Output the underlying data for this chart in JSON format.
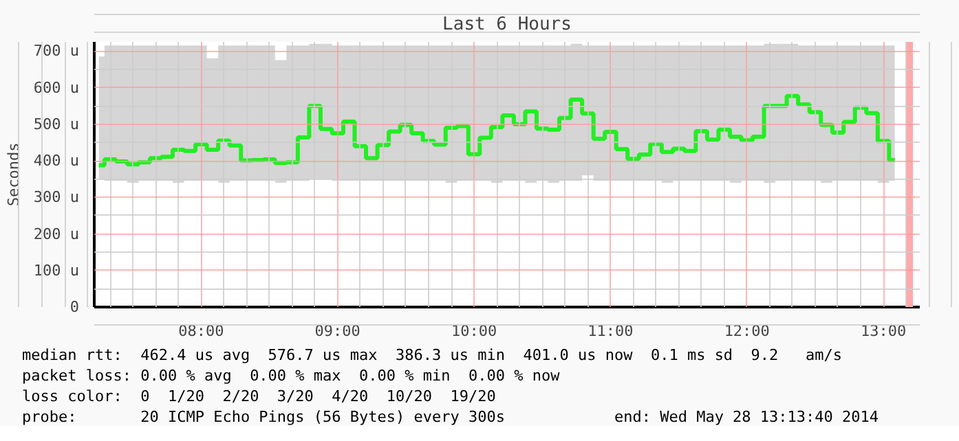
{
  "chart_data": {
    "type": "step",
    "title": "Last 6 Hours",
    "ylabel": "Seconds",
    "x": [
      "2014-05-28T07:15",
      "2014-05-28T07:20",
      "2014-05-28T07:25",
      "2014-05-28T07:30",
      "2014-05-28T07:35",
      "2014-05-28T07:40",
      "2014-05-28T07:45",
      "2014-05-28T07:50",
      "2014-05-28T07:55",
      "2014-05-28T08:00",
      "2014-05-28T08:05",
      "2014-05-28T08:10",
      "2014-05-28T08:15",
      "2014-05-28T08:20",
      "2014-05-28T08:25",
      "2014-05-28T08:30",
      "2014-05-28T08:35",
      "2014-05-28T08:40",
      "2014-05-28T08:45",
      "2014-05-28T08:50",
      "2014-05-28T08:55",
      "2014-05-28T09:00",
      "2014-05-28T09:05",
      "2014-05-28T09:10",
      "2014-05-28T09:15",
      "2014-05-28T09:20",
      "2014-05-28T09:25",
      "2014-05-28T09:30",
      "2014-05-28T09:35",
      "2014-05-28T09:40",
      "2014-05-28T09:45",
      "2014-05-28T09:50",
      "2014-05-28T09:55",
      "2014-05-28T10:00",
      "2014-05-28T10:05",
      "2014-05-28T10:10",
      "2014-05-28T10:15",
      "2014-05-28T10:20",
      "2014-05-28T10:25",
      "2014-05-28T10:30",
      "2014-05-28T10:35",
      "2014-05-28T10:40",
      "2014-05-28T10:45",
      "2014-05-28T10:50",
      "2014-05-28T10:55",
      "2014-05-28T11:00",
      "2014-05-28T11:05",
      "2014-05-28T11:10",
      "2014-05-28T11:15",
      "2014-05-28T11:20",
      "2014-05-28T11:25",
      "2014-05-28T11:30",
      "2014-05-28T11:35",
      "2014-05-28T11:40",
      "2014-05-28T11:45",
      "2014-05-28T11:50",
      "2014-05-28T11:55",
      "2014-05-28T12:00",
      "2014-05-28T12:05",
      "2014-05-28T12:10",
      "2014-05-28T12:15",
      "2014-05-28T12:20",
      "2014-05-28T12:25",
      "2014-05-28T12:30",
      "2014-05-28T12:35",
      "2014-05-28T12:40",
      "2014-05-28T12:45",
      "2014-05-28T12:50",
      "2014-05-28T12:55",
      "2014-05-28T13:00",
      "2014-05-28T13:05"
    ],
    "series": [
      {
        "color": "#22ee22",
        "values": [
          388,
          404,
          398,
          390,
          396,
          407,
          411,
          430,
          427,
          445,
          430,
          455,
          442,
          401,
          402,
          404,
          394,
          396,
          464,
          550,
          487,
          475,
          507,
          440,
          407,
          443,
          480,
          498,
          475,
          454,
          444,
          490,
          495,
          418,
          463,
          492,
          524,
          500,
          535,
          488,
          485,
          517,
          567,
          529,
          460,
          479,
          432,
          405,
          417,
          446,
          424,
          433,
          427,
          481,
          458,
          485,
          466,
          456,
          466,
          550,
          550,
          577,
          554,
          533,
          498,
          477,
          506,
          545,
          530,
          454,
          402
        ],
        "lower": [
          350,
          345,
          345,
          340,
          345,
          345,
          345,
          340,
          345,
          345,
          345,
          340,
          345,
          345,
          345,
          345,
          340,
          345,
          345,
          350,
          350,
          345,
          345,
          345,
          345,
          345,
          345,
          345,
          345,
          345,
          345,
          340,
          345,
          345,
          345,
          340,
          345,
          345,
          340,
          345,
          340,
          345,
          345,
          360,
          345,
          345,
          345,
          345,
          345,
          345,
          340,
          345,
          345,
          345,
          345,
          345,
          340,
          345,
          345,
          340,
          345,
          345,
          345,
          345,
          340,
          345,
          345,
          345,
          345,
          340,
          345
        ],
        "upper": [
          685,
          715,
          715,
          715,
          715,
          715,
          715,
          715,
          715,
          715,
          680,
          715,
          715,
          715,
          715,
          715,
          675,
          715,
          715,
          720,
          720,
          715,
          715,
          715,
          715,
          715,
          715,
          715,
          715,
          715,
          715,
          715,
          715,
          715,
          715,
          715,
          715,
          715,
          715,
          715,
          715,
          715,
          720,
          715,
          715,
          715,
          715,
          715,
          715,
          715,
          715,
          715,
          715,
          715,
          715,
          715,
          715,
          715,
          715,
          720,
          720,
          720,
          715,
          715,
          715,
          715,
          715,
          715,
          715,
          715,
          715
        ]
      }
    ],
    "xlim": [
      "2014-05-28T07:13",
      "2014-05-28T13:16"
    ],
    "xticks": [
      {
        "value": "2014-05-28T08:00",
        "label": "08:00"
      },
      {
        "value": "2014-05-28T09:00",
        "label": "09:00"
      },
      {
        "value": "2014-05-28T10:00",
        "label": "10:00"
      },
      {
        "value": "2014-05-28T11:00",
        "label": "11:00"
      },
      {
        "value": "2014-05-28T12:00",
        "label": "12:00"
      },
      {
        "value": "2014-05-28T13:00",
        "label": "13:00"
      }
    ],
    "ylim": [
      0,
      725
    ],
    "yticks": [
      0,
      {
        "value": 100,
        "label": "100 u"
      },
      {
        "value": 200,
        "label": "200 u"
      },
      {
        "value": 300,
        "label": "300 u"
      },
      {
        "value": 400,
        "label": "400 u"
      },
      {
        "value": 500,
        "label": "500 u"
      },
      {
        "value": 600,
        "label": "600 u"
      },
      {
        "value": 700,
        "label": "700 u"
      }
    ],
    "grid": true,
    "bands": [
      {
        "axis": "x",
        "from": "2014-05-28T13:10",
        "to": "2014-05-28T13:13",
        "color": "#ffaaaa"
      }
    ],
    "annotations": [
      "median rtt:  462.4 us avg  576.7 us max  386.3 us min  401.0 us now  0.1 ms sd  9.2   am/s",
      "packet loss: 0.00 % avg  0.00 % max  0.00 % min  0.00 % now",
      "loss color:  0  1/20  2/20  3/20  4/20  10/20  19/20",
      "probe:       20 ICMP Echo Pings (56 Bytes) every 300s            end: Wed May 28 13:13:40 2014"
    ]
  }
}
